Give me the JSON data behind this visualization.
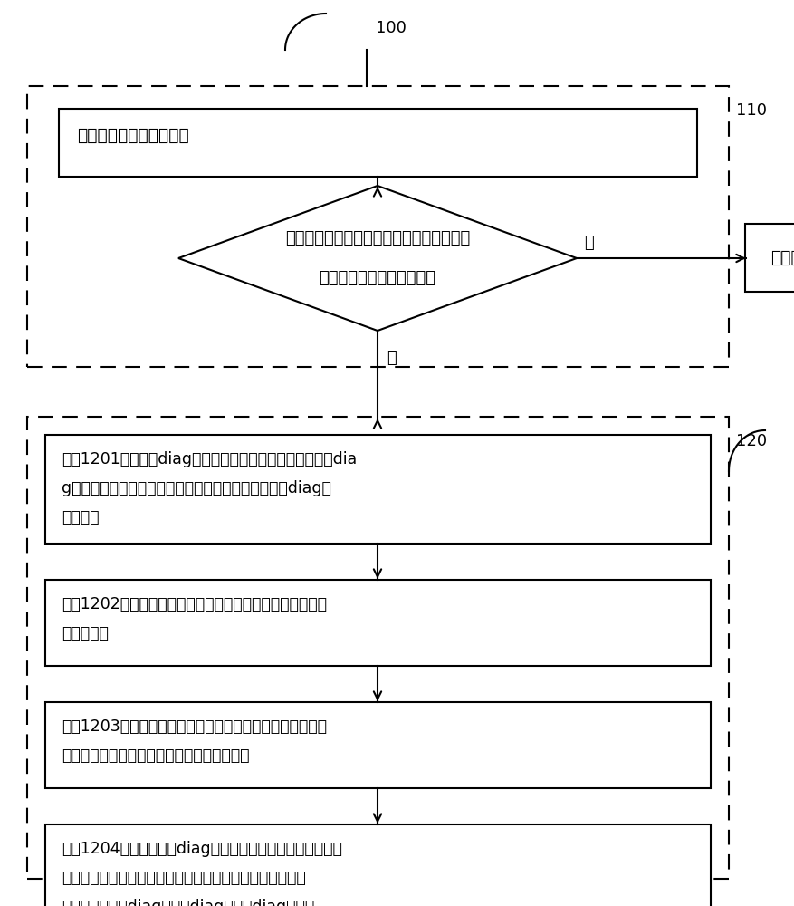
{
  "bg_color": "#ffffff",
  "label_100": "100",
  "label_110": "110",
  "label_120": "120",
  "box1_text": "解析所述网络配置文件；",
  "diamond_line1": "判断所述网络配置文件中自动更新使能开关",
  "diamond_line2": "的当前状态是否为启用状态",
  "end_text": "结束。",
  "no_label": "否",
  "yes_label": "是",
  "box1201_line1": "步骤1201，将测试diag文件存放到指定目录下，所述测试dia",
  "box1201_line2": "g文件在指定目录下的名称与在所述网络配置文件中的diag名",
  "box1201_line3": "称一致。",
  "box1202_line1": "步骤1202，在预先设置的测试扫描界面上，输入待测板卡的",
  "box1202_line2": "配置信息。",
  "box1203_line1": "步骤1203，通过预先设置的解析程序，从测试扫描界面中输",
  "box1203_line2": "入的信息中解析出待测板卡对应的配置信息。",
  "box1204_line1": "步骤1204，通过设置的diag版本比较程序，将解析程序解析",
  "box1204_line2": "出来的信息去匹配检索网络配置文件，获取网络配置文件中",
  "box1204_line3": "配置的最新测试diag文件的diag名称及diag版本。"
}
